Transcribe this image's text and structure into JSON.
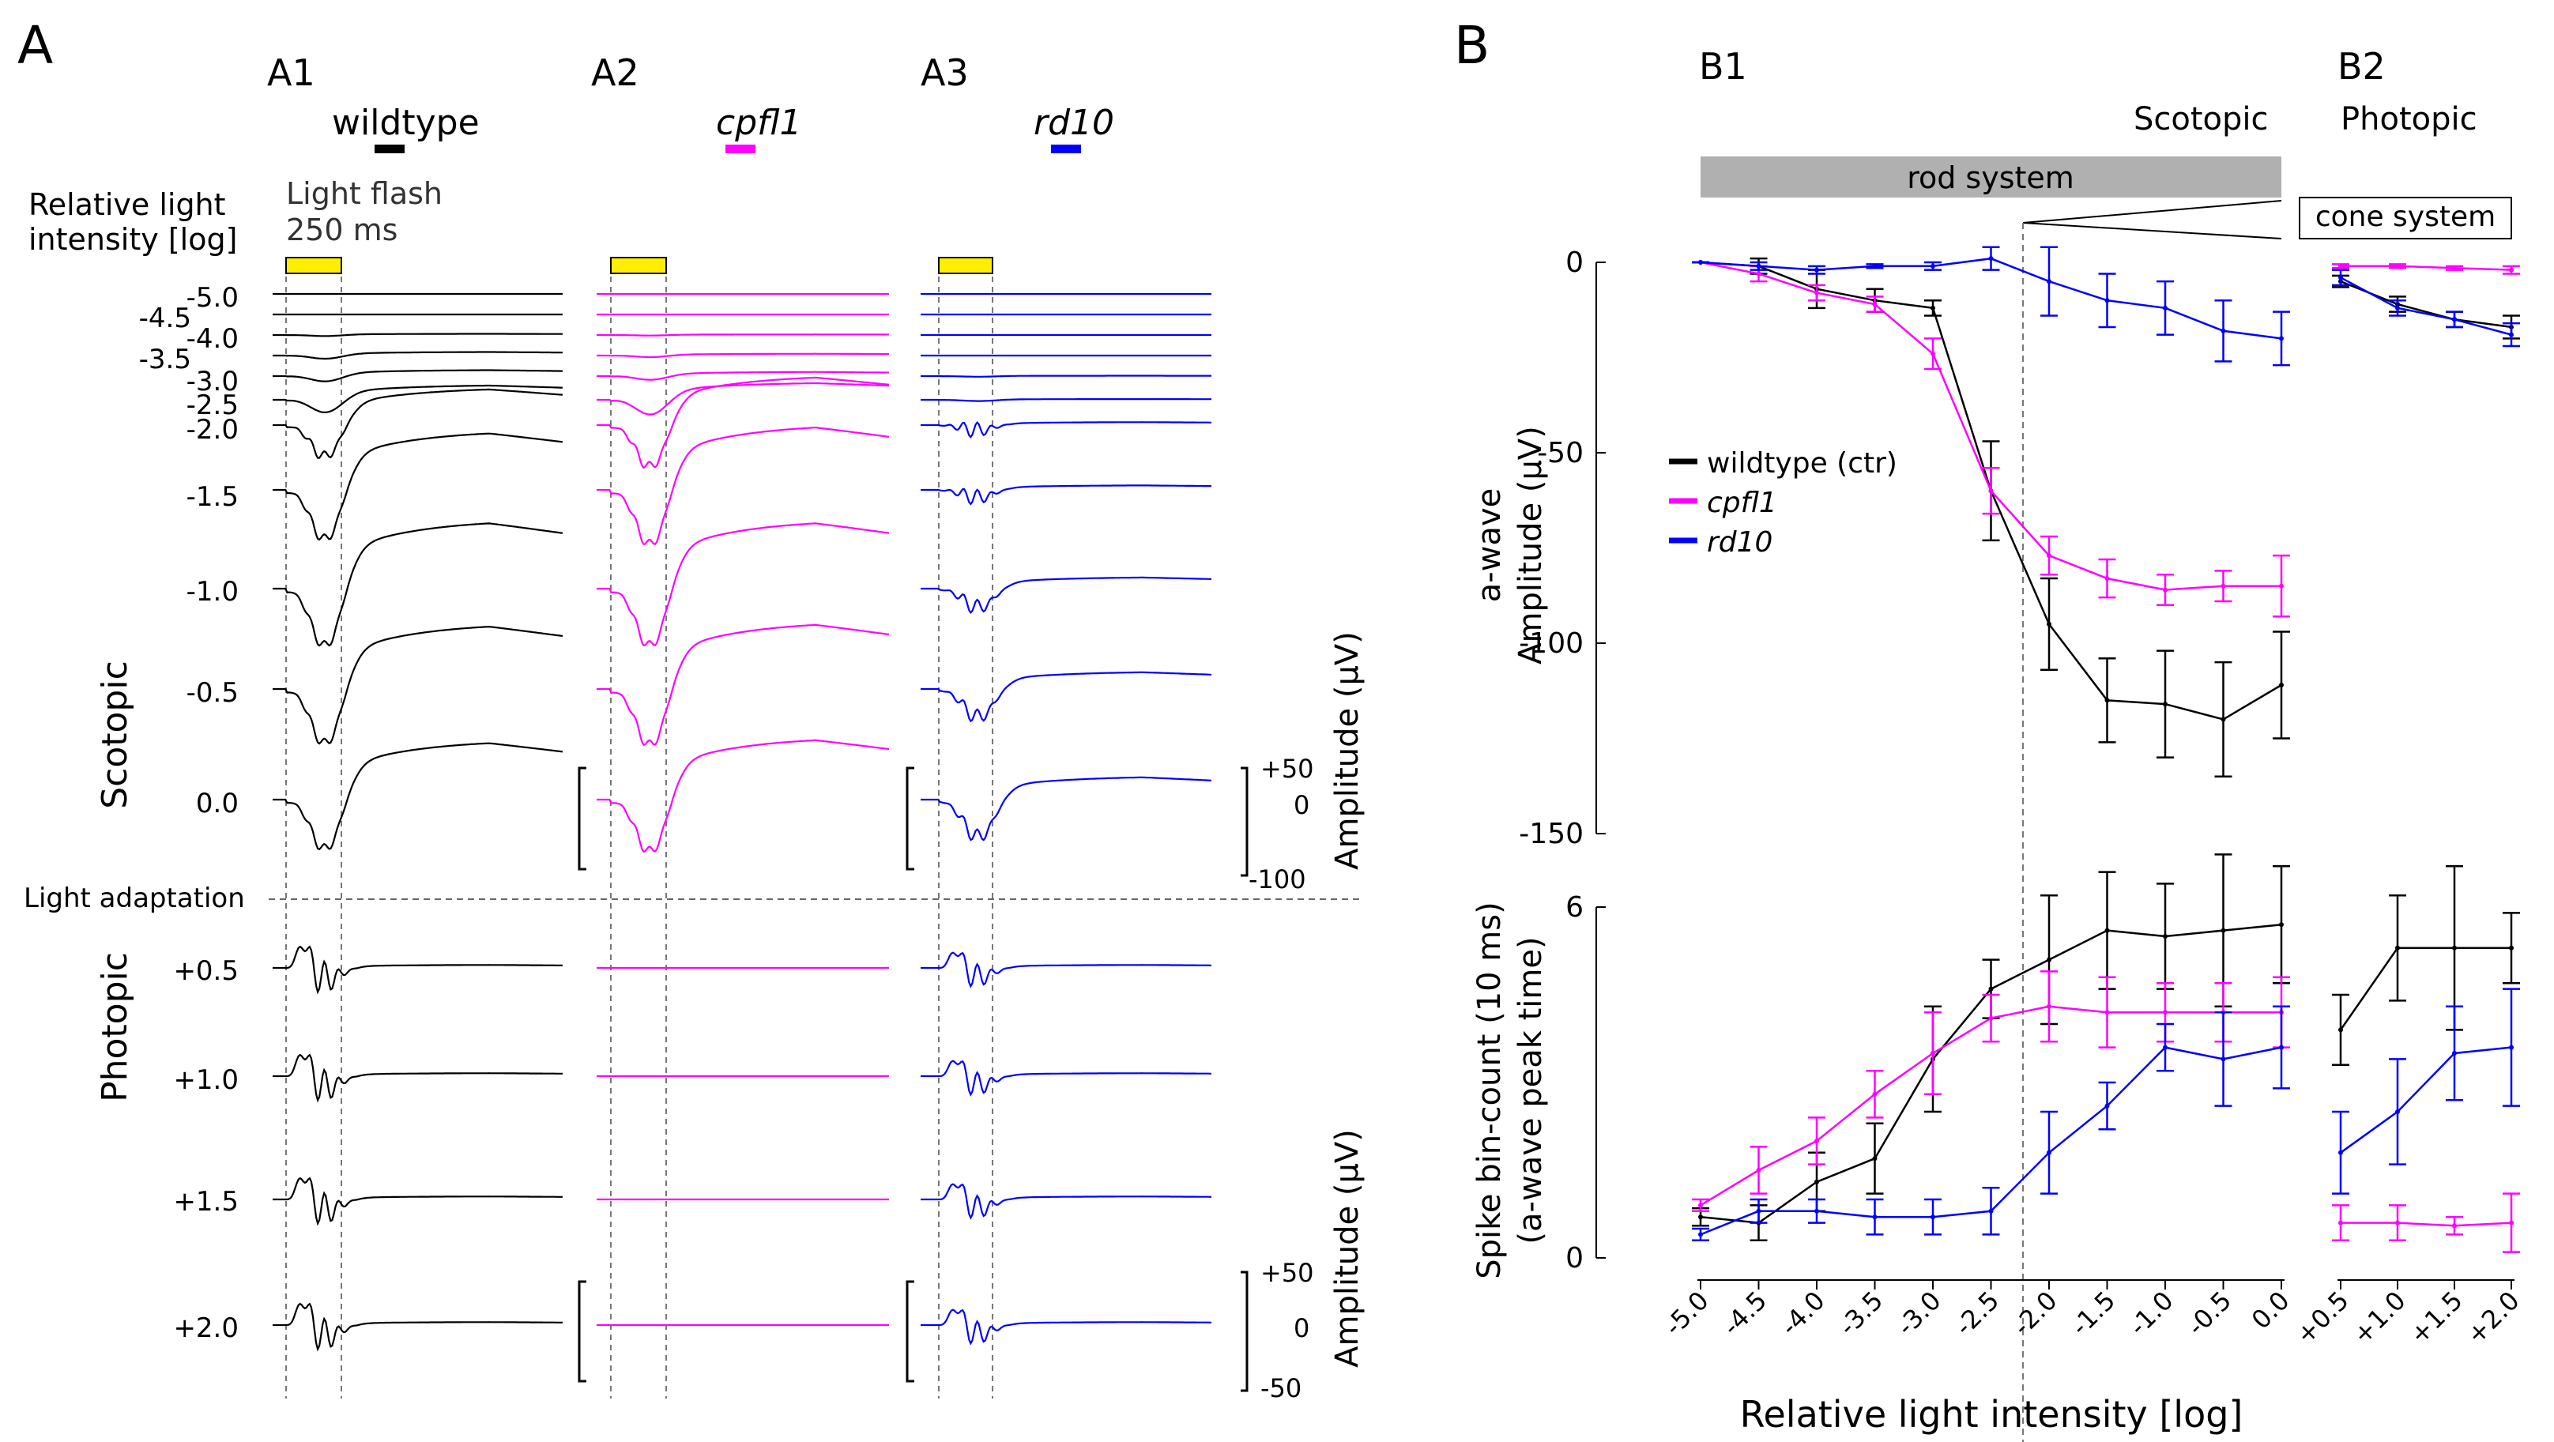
{
  "colors": {
    "wildtype": "#000000",
    "cpfl1": "#ff00ff",
    "rd10": "#0000ff",
    "flash": "#ffee00",
    "bar_gray": "#b0b0b0"
  },
  "panel_a": {
    "letter": "A",
    "columns": [
      {
        "id": "A1",
        "label": "A1",
        "name": "wildtype",
        "italic": false,
        "color": "#000000"
      },
      {
        "id": "A2",
        "label": "A2",
        "name": "cpfl1",
        "italic": true,
        "color": "#ff00ff"
      },
      {
        "id": "A3",
        "label": "A3",
        "name": "rd10",
        "italic": true,
        "color": "#0000ff"
      }
    ],
    "intensity_title": [
      "Relative light",
      "intensity [log]"
    ],
    "flash_label": [
      "Light flash",
      "250 ms"
    ],
    "scotopic_label": "Scotopic",
    "photopic_label": "Photopic",
    "light_adaptation_label": "Light adaptation",
    "scotopic_intensities": [
      "-5.0",
      "-4.5",
      "-4.0",
      "-3.5",
      "-3.0",
      "-2.5",
      "-2.0",
      "-1.5",
      "-1.0",
      "-0.5",
      "0.0"
    ],
    "photopic_intensities": [
      "+0.5",
      "+1.0",
      "+1.5",
      "+2.0"
    ],
    "scale_scotopic": {
      "ticks": [
        "+50",
        "0",
        "-100"
      ],
      "label": "Amplitude (µV)"
    },
    "scale_photopic": {
      "ticks": [
        "+50",
        "0",
        "-50"
      ],
      "label": "Amplitude (µV)"
    }
  },
  "panel_b": {
    "letter": "B",
    "b1_label": "B1",
    "b2_label": "B2",
    "scotopic_label": "Scotopic",
    "photopic_label": "Photopic",
    "rod_system_label": "rod system",
    "cone_system_label": "cone system",
    "x_label": "Relative light intensity [log]",
    "a_wave_ylabel": [
      "a-wave",
      "Amplitude (µV)"
    ],
    "spike_ylabel": [
      "Spike bin-count (10 ms)",
      "(a-wave peak time)"
    ],
    "legend": [
      {
        "label": "wildtype (ctr)",
        "color": "#000000",
        "italic": false
      },
      {
        "label": "cpfl1",
        "color": "#ff00ff",
        "italic": true
      },
      {
        "label": "rd10",
        "color": "#0000ff",
        "italic": true
      }
    ]
  },
  "chart_data": [
    {
      "type": "line",
      "title": "a-wave amplitude",
      "xlabel": "Relative light intensity [log]",
      "ylabel": "a-wave Amplitude (µV)",
      "x_scotopic": [
        -5.0,
        -4.5,
        -4.0,
        -3.5,
        -3.0,
        -2.5,
        -2.0,
        -1.5,
        -1.0,
        -0.5,
        0.0
      ],
      "x_scotopic_ticks": [
        "-5.0",
        "-4.5",
        "-4.0",
        "-3.5",
        "-3.0",
        "-2.5",
        "-2.0",
        "-1.5",
        "-1.0",
        "-0.5",
        "0.0"
      ],
      "x_photopic": [
        0.5,
        1.0,
        1.5,
        2.0
      ],
      "x_photopic_ticks": [
        "+0.5",
        "+1.0",
        "+1.5",
        "+2.0"
      ],
      "ylim": [
        -150,
        0
      ],
      "yticks": [
        0,
        -50,
        -100,
        -150
      ],
      "ytick_labels": [
        "0",
        "-50",
        "-100",
        "-150"
      ],
      "series": [
        {
          "name": "wildtype (ctr)",
          "color": "#000000",
          "scotopic": [
            0,
            -1,
            -7,
            -10,
            -12,
            -60,
            -95,
            -115,
            -116,
            -120,
            -111
          ],
          "scotopic_err": [
            0,
            2,
            5,
            3,
            2,
            13,
            12,
            11,
            14,
            15,
            14
          ],
          "photopic": [
            -5,
            -11,
            -15,
            -17
          ],
          "photopic_err": [
            1.5,
            2,
            2,
            3
          ]
        },
        {
          "name": "cpfl1",
          "color": "#ff00ff",
          "scotopic": [
            0,
            -3,
            -8,
            -11,
            -24,
            -60,
            -77,
            -83,
            -86,
            -85,
            -85
          ],
          "scotopic_err": [
            0,
            2,
            2,
            2,
            4,
            6,
            5,
            5,
            4,
            4,
            8
          ],
          "photopic": [
            -1,
            -1,
            -1.5,
            -2
          ],
          "photopic_err": [
            0.5,
            0.5,
            0.5,
            1
          ]
        },
        {
          "name": "rd10",
          "color": "#0000ff",
          "scotopic": [
            0,
            -1,
            -2,
            -1,
            -1,
            1,
            -5,
            -10,
            -12,
            -18,
            -20
          ],
          "scotopic_err": [
            0,
            1,
            1,
            0.5,
            1,
            3,
            9,
            7,
            7,
            8,
            7
          ],
          "photopic": [
            -4,
            -12,
            -15,
            -19
          ],
          "photopic_err": [
            2,
            2,
            2,
            3
          ]
        }
      ]
    },
    {
      "type": "line",
      "title": "Spike bin-count",
      "xlabel": "Relative light intensity [log]",
      "ylabel": "Spike bin-count (10 ms) (a-wave peak time)",
      "x_scotopic": [
        -5.0,
        -4.5,
        -4.0,
        -3.5,
        -3.0,
        -2.5,
        -2.0,
        -1.5,
        -1.0,
        -0.5,
        0.0
      ],
      "x_photopic": [
        0.5,
        1.0,
        1.5,
        2.0
      ],
      "ylim": [
        0,
        6
      ],
      "yticks": [
        0,
        6
      ],
      "ytick_labels": [
        "0",
        "6"
      ],
      "series": [
        {
          "name": "wildtype (ctr)",
          "color": "#000000",
          "scotopic": [
            0.7,
            0.6,
            1.3,
            1.7,
            3.4,
            4.6,
            5.1,
            5.6,
            5.5,
            5.6,
            5.7
          ],
          "scotopic_err": [
            0.15,
            0.3,
            0.5,
            0.6,
            0.9,
            0.5,
            1.1,
            1.0,
            0.9,
            1.3,
            1.0
          ],
          "photopic": [
            3.9,
            5.3,
            5.3,
            5.3
          ],
          "photopic_err": [
            0.6,
            0.9,
            1.4,
            0.6
          ]
        },
        {
          "name": "cpfl1",
          "color": "#ff00ff",
          "scotopic": [
            0.9,
            1.5,
            2.0,
            2.8,
            3.5,
            4.1,
            4.3,
            4.2,
            4.2,
            4.2,
            4.2
          ],
          "scotopic_err": [
            0.1,
            0.4,
            0.4,
            0.4,
            0.7,
            0.4,
            0.6,
            0.6,
            0.5,
            0.5,
            0.6
          ],
          "photopic": [
            0.6,
            0.6,
            0.55,
            0.6
          ],
          "photopic_err": [
            0.3,
            0.3,
            0.15,
            0.5
          ]
        },
        {
          "name": "rd10",
          "color": "#0000ff",
          "scotopic": [
            0.4,
            0.8,
            0.8,
            0.7,
            0.7,
            0.8,
            1.8,
            2.6,
            3.6,
            3.4,
            3.6
          ],
          "scotopic_err": [
            0.1,
            0.2,
            0.2,
            0.3,
            0.3,
            0.4,
            0.7,
            0.4,
            0.4,
            0.8,
            0.7
          ],
          "photopic": [
            1.8,
            2.5,
            3.5,
            3.6
          ],
          "photopic_err": [
            0.7,
            0.9,
            0.8,
            1.0
          ]
        }
      ]
    }
  ]
}
